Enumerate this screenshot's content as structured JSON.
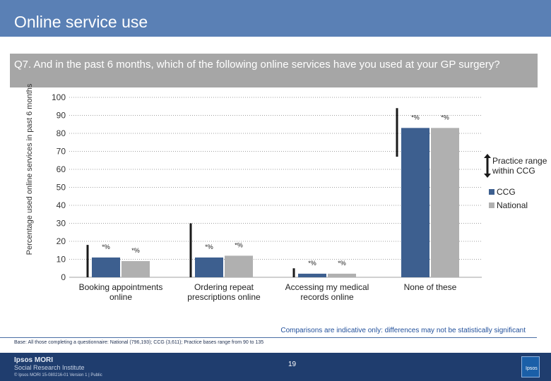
{
  "header": {
    "title": "Online service use"
  },
  "question": "Q7. And in the past 6 months, which of the following online services have you used at your GP surgery?",
  "comparison_note": "Comparisons are indicative only: differences may not be statistically significant",
  "base_note": "Base: All those completing a questionnaire: National (796,193); CCG (3,611); Practice bases range from 90 to 135",
  "footer": {
    "logo": "Ipsos MORI",
    "logo_sub": "Social Research Institute",
    "page": "19",
    "copyright": "© Ipsos MORI     15-080216-01 Version 1 | Public",
    "icon_text": "Ipsos"
  },
  "colors": {
    "ccg": "#3d5f8f",
    "national": "#b0b0b0",
    "range": "#1a1a1a",
    "grid": "#a0a0a0"
  },
  "chart_data": {
    "type": "bar",
    "ylabel": "Percentage used online services in past 6 months",
    "ylim": [
      0,
      100
    ],
    "yticks": [
      0,
      10,
      20,
      30,
      40,
      50,
      60,
      70,
      80,
      90,
      100
    ],
    "categories": [
      "Booking appointments online",
      "Ordering repeat prescriptions online",
      "Accessing my medical records online",
      "None of these"
    ],
    "series": [
      {
        "name": "CCG",
        "values": [
          11,
          11,
          2,
          83
        ],
        "labels": [
          "*%",
          "*%",
          "*%",
          "*%"
        ]
      },
      {
        "name": "National",
        "values": [
          9,
          12,
          2,
          83
        ],
        "labels": [
          "*%",
          "*%",
          "*%",
          "*%"
        ]
      }
    ],
    "practice_range": [
      [
        0,
        18
      ],
      [
        0,
        30
      ],
      [
        0,
        5
      ],
      [
        67,
        94
      ]
    ],
    "legend": [
      {
        "label": "Practice range within CCG",
        "kind": "range"
      },
      {
        "label": "CCG",
        "kind": "ccg"
      },
      {
        "label": "National",
        "kind": "national"
      }
    ],
    "legend_position": "right",
    "grid": true
  }
}
